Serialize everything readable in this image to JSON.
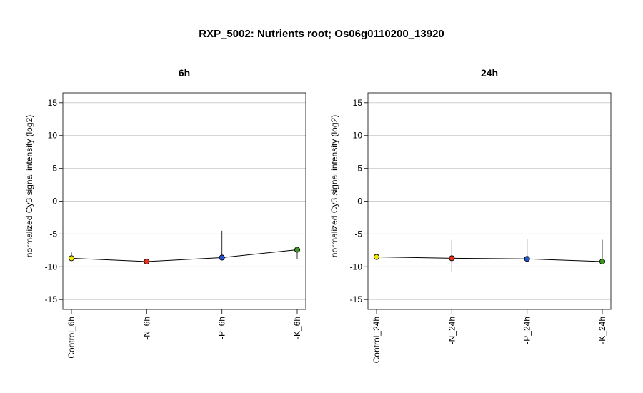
{
  "title": "RXP_5002: Nutrients root; Os06g0110200_13920",
  "colors": {
    "yellow": "#f2e500",
    "red": "#e8321e",
    "blue": "#2256d6",
    "green": "#3a9a1e",
    "grid": "#d0d0d0",
    "line": "#000000"
  },
  "chart_data": [
    {
      "type": "line",
      "title": "6h",
      "ylabel": "normalized Cy3 signal intensity (log2)",
      "xlabel": "",
      "ylim": [
        -16.5,
        16.5
      ],
      "yticks": [
        -15,
        -10,
        -5,
        0,
        5,
        10,
        15
      ],
      "grid": true,
      "categories": [
        "Control_6h",
        "-N_6h",
        "-P_6h",
        "-K_6h"
      ],
      "values": [
        -8.7,
        -9.2,
        -8.6,
        -7.4
      ],
      "err_low": [
        -9.0,
        -9.2,
        -8.6,
        -8.8
      ],
      "err_high": [
        -7.8,
        -9.2,
        -4.5,
        -7.4
      ],
      "point_colors": [
        "#f2e500",
        "#e8321e",
        "#2256d6",
        "#3a9a1e"
      ]
    },
    {
      "type": "line",
      "title": "24h",
      "ylabel": "normalized Cy3 signal intensity (log2)",
      "xlabel": "",
      "ylim": [
        -16.5,
        16.5
      ],
      "yticks": [
        -15,
        -10,
        -5,
        0,
        5,
        10,
        15
      ],
      "grid": true,
      "categories": [
        "Control_24h",
        "-N_24h",
        "-P_24h",
        "-K_24h"
      ],
      "values": [
        -8.5,
        -8.7,
        -8.8,
        -9.2
      ],
      "err_low": [
        -8.5,
        -10.7,
        -8.8,
        -9.6
      ],
      "err_high": [
        -8.5,
        -5.9,
        -5.8,
        -5.9
      ],
      "point_colors": [
        "#f2e500",
        "#e8321e",
        "#2256d6",
        "#3a9a1e"
      ]
    }
  ]
}
